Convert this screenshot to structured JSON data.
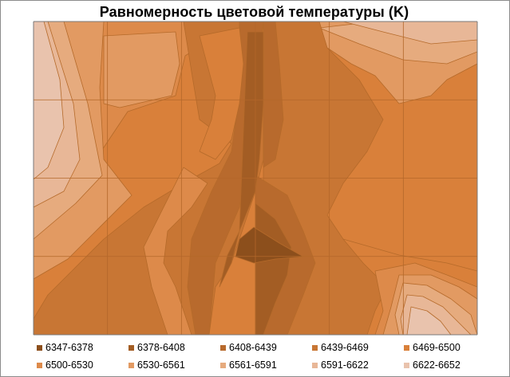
{
  "chart_data": {
    "type": "heatmap",
    "title": "Равномерность цветовой температуры (K)",
    "xlabel": "",
    "ylabel": "",
    "grid": true,
    "legend_position": "bottom",
    "levels": [
      {
        "label": "6347-6378",
        "min": 6347,
        "max": 6378,
        "color": "#8c4f1c"
      },
      {
        "label": "6378-6408",
        "min": 6378,
        "max": 6408,
        "color": "#a35d24"
      },
      {
        "label": "6408-6439",
        "min": 6408,
        "max": 6439,
        "color": "#b86a2d"
      },
      {
        "label": "6439-6469",
        "min": 6439,
        "max": 6469,
        "color": "#c87634"
      },
      {
        "label": "6469-6500",
        "min": 6469,
        "max": 6500,
        "color": "#d9803a"
      },
      {
        "label": "6500-6530",
        "min": 6500,
        "max": 6530,
        "color": "#dd8a4a"
      },
      {
        "label": "6530-6561",
        "min": 6530,
        "max": 6561,
        "color": "#e29a62"
      },
      {
        "label": "6561-6591",
        "min": 6561,
        "max": 6591,
        "color": "#e6ab7e"
      },
      {
        "label": "6591-6622",
        "min": 6591,
        "max": 6622,
        "color": "#e8b797"
      },
      {
        "label": "6622-6652",
        "min": 6622,
        "max": 6652,
        "color": "#e9c3ad"
      }
    ],
    "grid_cols": 6,
    "grid_rows": 4
  }
}
